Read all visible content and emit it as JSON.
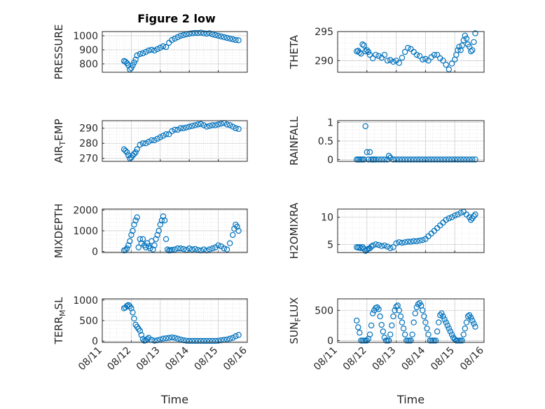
{
  "figure_title": "Figure 2 low",
  "marker_color": "#0072BD",
  "chart_data": [
    {
      "type": "scatter",
      "ylabel_main": "PRESSURE",
      "ylabel_sub": "",
      "ylabel_tail": "",
      "ylim": [
        740,
        1030
      ],
      "yticks": [
        800,
        900,
        1000
      ],
      "ytick_labels": [
        "800",
        "900",
        "1000"
      ],
      "xlim": [
        0,
        5
      ],
      "xticks": [
        0,
        1,
        2,
        3,
        4,
        5
      ],
      "xtick_labels": [],
      "xlabel": "",
      "x": [
        0.75,
        0.8,
        0.85,
        0.9,
        0.95,
        1.0,
        1.05,
        1.1,
        1.15,
        1.2,
        1.3,
        1.4,
        1.5,
        1.6,
        1.7,
        1.8,
        1.9,
        2.0,
        2.1,
        2.2,
        2.3,
        2.4,
        2.5,
        2.6,
        2.7,
        2.8,
        2.9,
        3.0,
        3.1,
        3.2,
        3.3,
        3.4,
        3.5,
        3.6,
        3.7,
        3.8,
        3.9,
        4.0,
        4.1,
        4.2,
        4.3,
        4.4,
        4.5,
        4.6,
        4.7
      ],
      "y": [
        820,
        815,
        805,
        790,
        760,
        770,
        790,
        810,
        830,
        860,
        870,
        875,
        885,
        895,
        900,
        895,
        905,
        915,
        925,
        920,
        950,
        970,
        980,
        990,
        1000,
        1005,
        1010,
        1015,
        1018,
        1020,
        1020,
        1022,
        1018,
        1015,
        1018,
        1010,
        1005,
        1000,
        995,
        990,
        985,
        980,
        975,
        970,
        968
      ]
    },
    {
      "type": "scatter",
      "ylabel_main": "THETA",
      "ylabel_sub": "",
      "ylabel_tail": "",
      "ylim": [
        288,
        295
      ],
      "yticks": [
        290,
        295
      ],
      "ytick_labels": [
        "290",
        "295"
      ],
      "xlim": [
        0,
        5
      ],
      "xticks": [
        0,
        1,
        2,
        3,
        4,
        5
      ],
      "xtick_labels": [],
      "xlabel": "",
      "x": [
        0.65,
        0.7,
        0.75,
        0.8,
        0.85,
        0.9,
        0.95,
        1.0,
        1.05,
        1.1,
        1.2,
        1.3,
        1.4,
        1.5,
        1.6,
        1.7,
        1.8,
        1.9,
        2.0,
        2.1,
        2.2,
        2.3,
        2.4,
        2.5,
        2.6,
        2.7,
        2.8,
        2.9,
        3.0,
        3.1,
        3.2,
        3.3,
        3.4,
        3.5,
        3.6,
        3.7,
        3.8,
        3.9,
        4.0,
        4.05,
        4.1,
        4.15,
        4.2,
        4.25,
        4.3,
        4.35,
        4.4,
        4.45,
        4.5,
        4.55,
        4.6,
        4.65,
        4.7
      ],
      "y": [
        291.6,
        291.7,
        291.4,
        291.2,
        292.8,
        292.6,
        291.6,
        291.8,
        291.5,
        291.0,
        290.4,
        291.0,
        290.8,
        290.5,
        291.0,
        290.0,
        290.1,
        289.8,
        290.0,
        289.6,
        290.5,
        291.5,
        292.2,
        292.0,
        291.5,
        291.0,
        290.8,
        290.2,
        290.3,
        290.0,
        290.6,
        291.0,
        291.0,
        290.4,
        290.0,
        289.3,
        288.5,
        289.5,
        290.2,
        291.0,
        291.8,
        292.4,
        291.8,
        292.6,
        293.5,
        294.3,
        293.8,
        292.8,
        292.4,
        291.6,
        291.8,
        293.2,
        294.7
      ]
    },
    {
      "type": "scatter",
      "ylabel_main": "AIR",
      "ylabel_sub": "T",
      "ylabel_tail": "EMP",
      "ylim": [
        268,
        295
      ],
      "yticks": [
        270,
        280,
        290
      ],
      "ytick_labels": [
        "270",
        "280",
        "290"
      ],
      "xlim": [
        0,
        5
      ],
      "xticks": [
        0,
        1,
        2,
        3,
        4,
        5
      ],
      "xtick_labels": [],
      "xlabel": "",
      "x": [
        0.75,
        0.8,
        0.85,
        0.9,
        0.95,
        1.0,
        1.05,
        1.1,
        1.15,
        1.2,
        1.3,
        1.4,
        1.5,
        1.6,
        1.7,
        1.8,
        1.9,
        2.0,
        2.1,
        2.2,
        2.3,
        2.4,
        2.5,
        2.6,
        2.7,
        2.8,
        2.9,
        3.0,
        3.1,
        3.2,
        3.3,
        3.4,
        3.5,
        3.6,
        3.7,
        3.8,
        3.9,
        4.0,
        4.1,
        4.2,
        4.3,
        4.4,
        4.5,
        4.6,
        4.7
      ],
      "y": [
        276,
        275,
        274,
        272,
        270,
        270.5,
        272,
        273,
        274,
        276,
        279,
        280,
        280,
        281,
        282,
        282,
        283,
        284,
        285,
        286,
        286,
        288,
        289,
        289,
        290,
        290,
        290.5,
        291,
        291.5,
        292,
        292.5,
        292.8,
        292,
        291,
        291.5,
        292,
        292,
        292.5,
        293,
        293.5,
        292.5,
        292,
        291,
        290,
        289.5
      ]
    },
    {
      "type": "scatter",
      "ylabel_main": "RAINFALL",
      "ylabel_sub": "",
      "ylabel_tail": "",
      "ylim": [
        -0.05,
        1.05
      ],
      "yticks": [
        0,
        0.5,
        1
      ],
      "ytick_labels": [
        "0",
        "0.5",
        "1"
      ],
      "xlim": [
        0,
        5
      ],
      "xticks": [
        0,
        1,
        2,
        3,
        4,
        5
      ],
      "xtick_labels": [],
      "xlabel": "",
      "x": [
        0.65,
        0.7,
        0.75,
        0.8,
        0.85,
        0.9,
        0.95,
        1.0,
        1.05,
        1.1,
        1.15,
        1.2,
        1.25,
        1.3,
        1.4,
        1.5,
        1.6,
        1.7,
        1.75,
        1.8,
        1.9,
        2.0,
        2.1,
        2.2,
        2.3,
        2.4,
        2.5,
        2.6,
        2.7,
        2.8,
        2.9,
        3.0,
        3.1,
        3.2,
        3.3,
        3.4,
        3.5,
        3.6,
        3.7,
        3.8,
        3.9,
        4.0,
        4.1,
        4.2,
        4.3,
        4.4,
        4.5,
        4.6,
        4.7
      ],
      "y": [
        0,
        0,
        0,
        0,
        0,
        0,
        0.9,
        0.2,
        0,
        0.2,
        0,
        0,
        0,
        0,
        0,
        0,
        0,
        0,
        0.1,
        0.05,
        0,
        0,
        0,
        0,
        0,
        0,
        0,
        0,
        0,
        0,
        0,
        0,
        0,
        0,
        0,
        0,
        0,
        0,
        0,
        0,
        0,
        0,
        0,
        0,
        0,
        0,
        0,
        0,
        0
      ]
    },
    {
      "type": "scatter",
      "ylabel_main": "MIXDEPTH",
      "ylabel_sub": "",
      "ylabel_tail": "",
      "ylim": [
        -50,
        2050
      ],
      "yticks": [
        0,
        1000,
        2000
      ],
      "ytick_labels": [
        "0",
        "1000",
        "2000"
      ],
      "xlim": [
        0,
        5
      ],
      "xticks": [
        0,
        1,
        2,
        3,
        4,
        5
      ],
      "xtick_labels": [],
      "xlabel": "",
      "x": [
        0.75,
        0.8,
        0.85,
        0.9,
        0.95,
        1.0,
        1.05,
        1.1,
        1.15,
        1.2,
        1.25,
        1.3,
        1.35,
        1.4,
        1.45,
        1.5,
        1.55,
        1.6,
        1.65,
        1.7,
        1.75,
        1.8,
        1.85,
        1.9,
        1.95,
        2.0,
        2.05,
        2.1,
        2.15,
        2.2,
        2.25,
        2.3,
        2.35,
        2.4,
        2.5,
        2.6,
        2.7,
        2.8,
        2.9,
        3.0,
        3.1,
        3.2,
        3.3,
        3.4,
        3.5,
        3.6,
        3.7,
        3.8,
        3.9,
        4.0,
        4.1,
        4.2,
        4.3,
        4.4,
        4.5,
        4.55,
        4.6,
        4.65,
        4.7
      ],
      "y": [
        50,
        80,
        150,
        300,
        500,
        800,
        1000,
        1300,
        1500,
        1650,
        200,
        600,
        400,
        600,
        300,
        200,
        400,
        250,
        150,
        500,
        100,
        300,
        600,
        800,
        1000,
        1300,
        1500,
        1700,
        1500,
        600,
        100,
        50,
        60,
        80,
        100,
        150,
        150,
        120,
        80,
        150,
        100,
        120,
        80,
        50,
        100,
        50,
        100,
        150,
        200,
        300,
        250,
        150,
        100,
        400,
        800,
        1100,
        1300,
        1200,
        1000
      ]
    },
    {
      "type": "scatter",
      "ylabel_main": "H2OMIXRA",
      "ylabel_sub": "",
      "ylabel_tail": "",
      "ylim": [
        3.5,
        11.5
      ],
      "yticks": [
        5,
        10
      ],
      "ytick_labels": [
        "5",
        "10"
      ],
      "xlim": [
        0,
        5
      ],
      "xticks": [
        0,
        1,
        2,
        3,
        4,
        5
      ],
      "xtick_labels": [],
      "xlabel": "",
      "x": [
        0.65,
        0.7,
        0.75,
        0.8,
        0.85,
        0.9,
        0.95,
        1.0,
        1.05,
        1.1,
        1.15,
        1.2,
        1.3,
        1.4,
        1.5,
        1.6,
        1.7,
        1.8,
        1.9,
        2.0,
        2.1,
        2.2,
        2.3,
        2.4,
        2.5,
        2.6,
        2.7,
        2.8,
        2.9,
        3.0,
        3.1,
        3.2,
        3.3,
        3.4,
        3.5,
        3.6,
        3.7,
        3.8,
        3.9,
        4.0,
        4.1,
        4.2,
        4.3,
        4.4,
        4.5,
        4.55,
        4.6,
        4.65,
        4.7
      ],
      "y": [
        4.5,
        4.4,
        4.5,
        4.3,
        4.5,
        4.2,
        3.8,
        4.0,
        4.2,
        4.3,
        4.6,
        4.8,
        5.0,
        4.9,
        4.7,
        4.8,
        4.6,
        4.3,
        4.5,
        5.2,
        5.4,
        5.3,
        5.4,
        5.5,
        5.5,
        5.6,
        5.6,
        5.7,
        5.8,
        6.0,
        6.5,
        7.0,
        7.5,
        8.0,
        8.5,
        9.0,
        9.5,
        9.8,
        10.0,
        10.3,
        10.5,
        10.8,
        11.0,
        10.5,
        10.0,
        9.5,
        9.8,
        10.2,
        10.5
      ]
    },
    {
      "type": "scatter",
      "ylabel_main": "TERR",
      "ylabel_sub": "M",
      "ylabel_tail": "SL",
      "ylim": [
        -30,
        1030
      ],
      "yticks": [
        0,
        500,
        1000
      ],
      "ytick_labels": [
        "0",
        "500",
        "1000"
      ],
      "xlim": [
        0,
        5
      ],
      "xticks": [
        0,
        1,
        2,
        3,
        4,
        5
      ],
      "xtick_labels": [
        "08/11",
        "08/12",
        "08/13",
        "08/14",
        "08/15",
        "08/16"
      ],
      "xlabel": "Time",
      "x": [
        0.75,
        0.8,
        0.85,
        0.9,
        0.95,
        1.0,
        1.05,
        1.1,
        1.15,
        1.2,
        1.25,
        1.3,
        1.35,
        1.4,
        1.45,
        1.5,
        1.55,
        1.6,
        1.7,
        1.8,
        1.9,
        2.0,
        2.1,
        2.2,
        2.3,
        2.4,
        2.5,
        2.6,
        2.7,
        2.8,
        2.9,
        3.0,
        3.1,
        3.2,
        3.3,
        3.4,
        3.5,
        3.6,
        3.7,
        3.8,
        3.9,
        4.0,
        4.1,
        4.2,
        4.3,
        4.4,
        4.5,
        4.6,
        4.7
      ],
      "y": [
        800,
        820,
        860,
        880,
        850,
        800,
        700,
        550,
        400,
        350,
        300,
        250,
        150,
        50,
        10,
        20,
        50,
        80,
        30,
        10,
        20,
        40,
        60,
        70,
        80,
        90,
        80,
        60,
        40,
        20,
        10,
        5,
        5,
        5,
        5,
        5,
        5,
        5,
        5,
        5,
        5,
        10,
        20,
        30,
        40,
        60,
        80,
        120,
        150
      ]
    },
    {
      "type": "scatter",
      "ylabel_main": "SUN",
      "ylabel_sub": "F",
      "ylabel_tail": "LUX",
      "ylim": [
        -30,
        690
      ],
      "yticks": [
        0,
        500
      ],
      "ytick_labels": [
        "0",
        "500"
      ],
      "xlim": [
        0,
        5
      ],
      "xticks": [
        0,
        1,
        2,
        3,
        4,
        5
      ],
      "xtick_labels": [
        "08/11",
        "08/12",
        "08/13",
        "08/14",
        "08/15",
        "08/16"
      ],
      "xlabel": "Time",
      "x": [
        0.65,
        0.7,
        0.75,
        0.8,
        0.85,
        0.9,
        0.95,
        1.0,
        1.05,
        1.1,
        1.15,
        1.2,
        1.25,
        1.3,
        1.35,
        1.4,
        1.45,
        1.5,
        1.55,
        1.6,
        1.65,
        1.7,
        1.75,
        1.8,
        1.85,
        1.9,
        1.95,
        2.0,
        2.05,
        2.1,
        2.15,
        2.2,
        2.25,
        2.3,
        2.35,
        2.4,
        2.45,
        2.5,
        2.55,
        2.6,
        2.65,
        2.7,
        2.75,
        2.8,
        2.85,
        2.9,
        2.95,
        3.0,
        3.05,
        3.1,
        3.15,
        3.2,
        3.25,
        3.3,
        3.35,
        3.4,
        3.45,
        3.5,
        3.55,
        3.6,
        3.65,
        3.7,
        3.75,
        3.8,
        3.85,
        3.9,
        3.95,
        4.0,
        4.05,
        4.1,
        4.15,
        4.2,
        4.25,
        4.3,
        4.35,
        4.4,
        4.45,
        4.5,
        4.55,
        4.6,
        4.65,
        4.7
      ],
      "y": [
        330,
        220,
        130,
        0,
        0,
        0,
        0,
        0,
        30,
        100,
        250,
        450,
        500,
        540,
        550,
        520,
        400,
        260,
        150,
        50,
        0,
        0,
        0,
        100,
        250,
        400,
        500,
        560,
        580,
        500,
        400,
        300,
        200,
        100,
        0,
        0,
        0,
        0,
        100,
        300,
        450,
        550,
        600,
        620,
        580,
        500,
        400,
        300,
        200,
        100,
        0,
        0,
        0,
        0,
        0,
        150,
        300,
        420,
        450,
        400,
        350,
        300,
        250,
        200,
        150,
        100,
        50,
        20,
        0,
        0,
        0,
        0,
        0,
        100,
        200,
        300,
        400,
        420,
        380,
        330,
        280,
        230
      ]
    }
  ]
}
